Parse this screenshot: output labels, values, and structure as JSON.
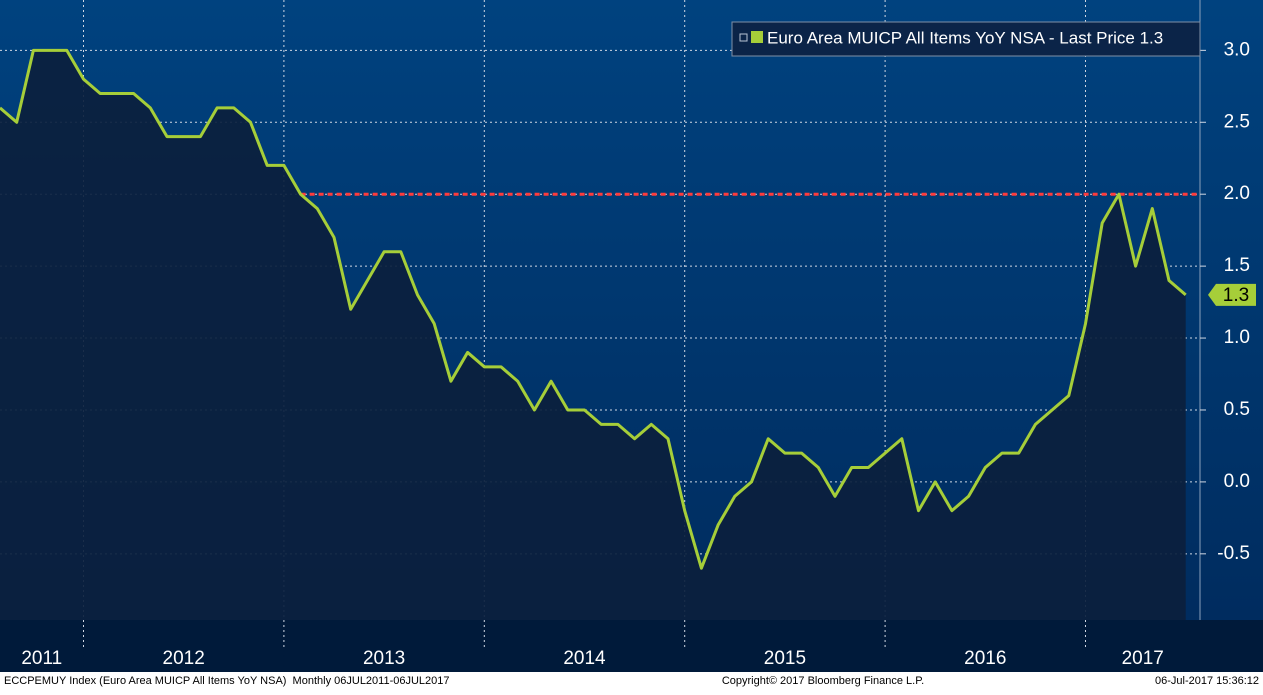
{
  "chart_data": {
    "type": "area-line",
    "series": [
      {
        "name": "Euro Area MUICP All Items YoY NSA - Last Price 1.3",
        "color": "#a6ce39",
        "values": [
          2.6,
          2.5,
          3.0,
          3.0,
          3.0,
          2.8,
          2.7,
          2.7,
          2.7,
          2.6,
          2.4,
          2.4,
          2.4,
          2.6,
          2.6,
          2.5,
          2.2,
          2.2,
          2.0,
          1.9,
          1.7,
          1.2,
          1.4,
          1.6,
          1.6,
          1.3,
          1.1,
          0.7,
          0.9,
          0.8,
          0.8,
          0.7,
          0.5,
          0.7,
          0.5,
          0.5,
          0.4,
          0.4,
          0.3,
          0.4,
          0.3,
          -0.2,
          -0.6,
          -0.3,
          -0.1,
          0.0,
          0.3,
          0.2,
          0.2,
          0.1,
          -0.1,
          0.1,
          0.1,
          0.2,
          0.3,
          -0.2,
          0.0,
          -0.2,
          -0.1,
          0.1,
          0.2,
          0.2,
          0.4,
          0.5,
          0.6,
          1.1,
          1.8,
          2.0,
          1.5,
          1.9,
          1.4,
          1.3
        ]
      }
    ],
    "x_labels": [
      "2011",
      "2012",
      "2013",
      "2014",
      "2015",
      "2016",
      "2017"
    ],
    "ylim": [
      -0.96,
      3.35
    ],
    "yticks": [
      {
        "value": -0.5,
        "label": "-0.5"
      },
      {
        "value": 0,
        "label": "0.0"
      },
      {
        "value": 0.5,
        "label": "0.5"
      },
      {
        "value": 1,
        "label": "1.0"
      },
      {
        "value": 1.5,
        "label": "1.5"
      },
      {
        "value": 2,
        "label": "2.0"
      },
      {
        "value": 2.5,
        "label": "2.5"
      },
      {
        "value": 3,
        "label": "3.0"
      }
    ],
    "reference_line": {
      "value": 2,
      "color": "#ff3b3b"
    },
    "grid": true,
    "footer": {
      "left": "ECCPEMUY Index (Euro Area MUICP All Items YoY NSA)  Monthly 06JUL2011-06JUL2017",
      "center": "Copyright© 2017 Bloomberg Finance L.P.",
      "right": "06-Jul-2017 15:36:12"
    }
  }
}
